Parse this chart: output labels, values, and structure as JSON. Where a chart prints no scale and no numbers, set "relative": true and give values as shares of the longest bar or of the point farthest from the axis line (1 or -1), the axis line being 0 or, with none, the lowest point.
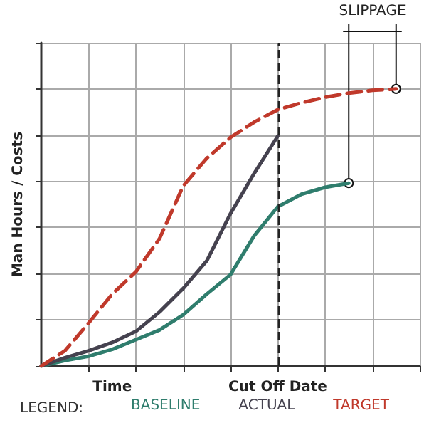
{
  "chart_data": {
    "type": "line",
    "relative": true,
    "ylabel": "Man Hours / Costs",
    "legend_title": "LEGEND:",
    "legend": "bottom",
    "grid": true,
    "marker": "none",
    "tick_labels": "x",
    "categories": [
      null,
      null,
      null,
      "Time",
      null,
      null,
      null,
      null,
      null,
      null,
      "Cut Off Date",
      null,
      null,
      null,
      null,
      null,
      null
    ],
    "series": [
      {
        "name": "BASELINE",
        "color": "#2f7d6d",
        "line_style": "solid",
        "values": [
          0,
          0.02,
          0.035,
          0.06,
          0.095,
          0.13,
          0.185,
          0.26,
          0.33,
          0.47,
          0.575,
          0.62,
          0.645,
          0.66,
          null,
          null,
          null
        ]
      },
      {
        "name": "ACTUAL",
        "color": "#45424f",
        "line_style": "solid",
        "values": [
          0,
          0.03,
          0.055,
          0.085,
          0.125,
          0.195,
          0.28,
          0.38,
          0.55,
          0.695,
          0.83,
          null,
          null,
          null,
          null,
          null,
          null
        ]
      },
      {
        "name": "TARGET",
        "color": "#c0392b",
        "line_style": "dashed",
        "values": [
          0,
          0.055,
          0.155,
          0.26,
          0.34,
          0.46,
          0.65,
          0.75,
          0.825,
          0.88,
          0.925,
          0.95,
          0.97,
          0.985,
          0.995,
          1,
          null
        ]
      }
    ],
    "ref_lines": [
      {
        "axis": "x",
        "value": "Cut Off Date",
        "color": "#222222",
        "line_style": "dashed"
      }
    ],
    "annotations": [
      "SLIPPAGE"
    ]
  }
}
